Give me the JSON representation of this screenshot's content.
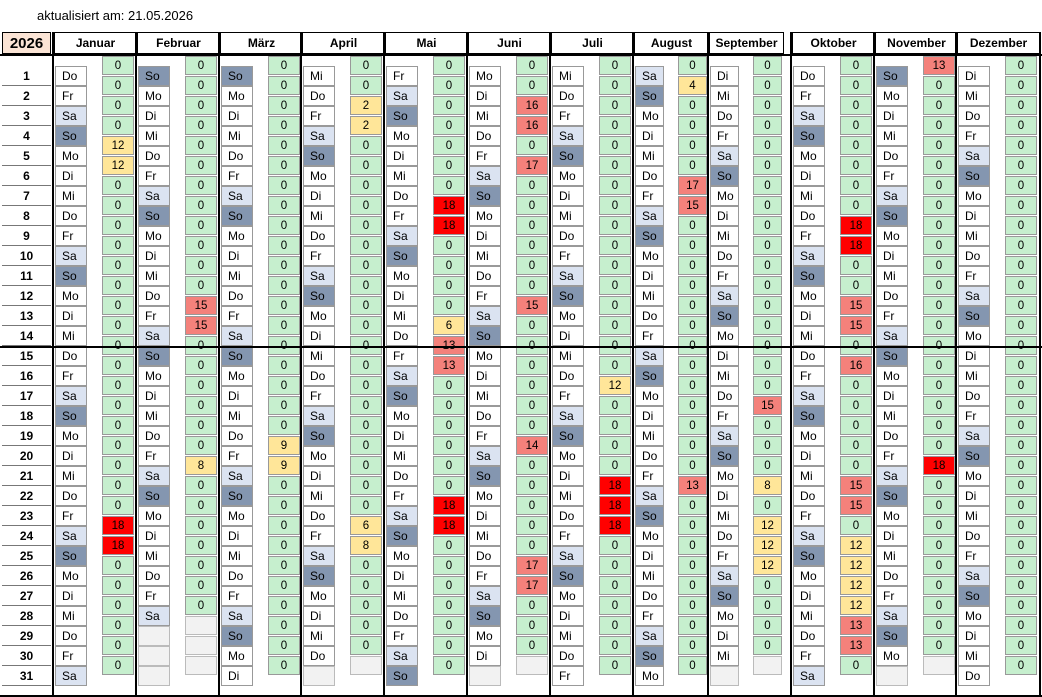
{
  "updated_label": "aktualisiert am:",
  "updated_date": "21.05.2026",
  "year": "2026",
  "months": [
    {
      "name": "Januar",
      "days": [
        "Do",
        "Fr",
        "Sa",
        "So",
        "Mo",
        "Di",
        "Mi",
        "Do",
        "Fr",
        "Sa",
        "So",
        "Mo",
        "Di",
        "Mi",
        "Do",
        "Fr",
        "Sa",
        "So",
        "Mo",
        "Di",
        "Mi",
        "Do",
        "Fr",
        "Sa",
        "So",
        "Mo",
        "Di",
        "Mi",
        "Do",
        "Fr",
        "Sa"
      ],
      "values": [
        0,
        0,
        0,
        0,
        12,
        12,
        0,
        0,
        0,
        0,
        0,
        0,
        0,
        0,
        0,
        0,
        0,
        0,
        0,
        0,
        0,
        0,
        0,
        18,
        18,
        0,
        0,
        0,
        0,
        0,
        0
      ]
    },
    {
      "name": "Februar",
      "days": [
        "So",
        "Mo",
        "Di",
        "Mi",
        "Do",
        "Fr",
        "Sa",
        "So",
        "Mo",
        "Di",
        "Mi",
        "Do",
        "Fr",
        "Sa",
        "So",
        "Mo",
        "Di",
        "Mi",
        "Do",
        "Fr",
        "Sa",
        "So",
        "Mo",
        "Di",
        "Mi",
        "Do",
        "Fr",
        "Sa"
      ],
      "values": [
        0,
        0,
        0,
        0,
        0,
        0,
        0,
        0,
        0,
        0,
        0,
        0,
        15,
        15,
        0,
        0,
        0,
        0,
        0,
        0,
        8,
        0,
        0,
        0,
        0,
        0,
        0,
        0
      ]
    },
    {
      "name": "März",
      "days": [
        "So",
        "Mo",
        "Di",
        "Mi",
        "Do",
        "Fr",
        "Sa",
        "So",
        "Mo",
        "Di",
        "Mi",
        "Do",
        "Fr",
        "Sa",
        "So",
        "Mo",
        "Di",
        "Mi",
        "Do",
        "Fr",
        "Sa",
        "So",
        "Mo",
        "Di",
        "Mi",
        "Do",
        "Fr",
        "Sa",
        "So",
        "Mo",
        "Di"
      ],
      "values": [
        0,
        0,
        0,
        0,
        0,
        0,
        0,
        0,
        0,
        0,
        0,
        0,
        0,
        0,
        0,
        0,
        0,
        0,
        0,
        9,
        9,
        0,
        0,
        0,
        0,
        0,
        0,
        0,
        0,
        0,
        0
      ]
    },
    {
      "name": "April",
      "days": [
        "Mi",
        "Do",
        "Fr",
        "Sa",
        "So",
        "Mo",
        "Di",
        "Mi",
        "Do",
        "Fr",
        "Sa",
        "So",
        "Mo",
        "Di",
        "Mi",
        "Do",
        "Fr",
        "Sa",
        "So",
        "Mo",
        "Di",
        "Mi",
        "Do",
        "Fr",
        "Sa",
        "So",
        "Mo",
        "Di",
        "Mi",
        "Do"
      ],
      "values": [
        0,
        0,
        2,
        2,
        0,
        0,
        0,
        0,
        0,
        0,
        0,
        0,
        0,
        0,
        0,
        0,
        0,
        0,
        0,
        0,
        0,
        0,
        0,
        6,
        8,
        0,
        0,
        0,
        0,
        0
      ]
    },
    {
      "name": "Mai",
      "days": [
        "Fr",
        "Sa",
        "So",
        "Mo",
        "Di",
        "Mi",
        "Do",
        "Fr",
        "Sa",
        "So",
        "Mo",
        "Di",
        "Mi",
        "Do",
        "Fr",
        "Sa",
        "So",
        "Mo",
        "Di",
        "Mi",
        "Do",
        "Fr",
        "Sa",
        "So",
        "Mo",
        "Di",
        "Mi",
        "Do",
        "Fr",
        "Sa",
        "So"
      ],
      "values": [
        0,
        0,
        0,
        0,
        0,
        0,
        0,
        18,
        18,
        0,
        0,
        0,
        0,
        6,
        13,
        13,
        0,
        0,
        0,
        0,
        0,
        0,
        18,
        18,
        0,
        0,
        0,
        0,
        0,
        0,
        0
      ]
    },
    {
      "name": "Juni",
      "days": [
        "Mo",
        "Di",
        "Mi",
        "Do",
        "Fr",
        "Sa",
        "So",
        "Mo",
        "Di",
        "Mi",
        "Do",
        "Fr",
        "Sa",
        "So",
        "Mo",
        "Di",
        "Mi",
        "Do",
        "Fr",
        "Sa",
        "So",
        "Mo",
        "Di",
        "Mi",
        "Do",
        "Fr",
        "Sa",
        "So",
        "Mo",
        "Di"
      ],
      "values": [
        0,
        0,
        16,
        16,
        0,
        17,
        0,
        0,
        0,
        0,
        0,
        0,
        15,
        0,
        0,
        0,
        0,
        0,
        0,
        14,
        0,
        0,
        0,
        0,
        0,
        17,
        17,
        0,
        0,
        0
      ]
    },
    {
      "name": "Juli",
      "days": [
        "Mi",
        "Do",
        "Fr",
        "Sa",
        "So",
        "Mo",
        "Di",
        "Mi",
        "Do",
        "Fr",
        "Sa",
        "So",
        "Mo",
        "Di",
        "Mi",
        "Do",
        "Fr",
        "Sa",
        "So",
        "Mo",
        "Di",
        "Mi",
        "Do",
        "Fr",
        "Sa",
        "So",
        "Mo",
        "Di",
        "Mi",
        "Do",
        "Fr"
      ],
      "values": [
        0,
        0,
        0,
        0,
        0,
        0,
        0,
        0,
        0,
        0,
        0,
        0,
        0,
        0,
        0,
        0,
        12,
        0,
        0,
        0,
        0,
        18,
        18,
        18,
        0,
        0,
        0,
        0,
        0,
        0,
        0
      ]
    },
    {
      "name": "August",
      "days": [
        "Sa",
        "So",
        "Mo",
        "Di",
        "Mi",
        "Do",
        "Fr",
        "Sa",
        "So",
        "Mo",
        "Di",
        "Mi",
        "Do",
        "Fr",
        "Sa",
        "So",
        "Mo",
        "Di",
        "Mi",
        "Do",
        "Fr",
        "Sa",
        "So",
        "Mo",
        "Di",
        "Mi",
        "Do",
        "Fr",
        "Sa",
        "So",
        "Mo"
      ],
      "values": [
        0,
        4,
        0,
        0,
        0,
        0,
        17,
        15,
        0,
        0,
        0,
        0,
        0,
        0,
        0,
        0,
        0,
        0,
        0,
        0,
        0,
        13,
        0,
        0,
        0,
        0,
        0,
        0,
        0,
        0,
        0
      ]
    },
    {
      "name": "September",
      "days": [
        "Di",
        "Mi",
        "Do",
        "Fr",
        "Sa",
        "So",
        "Mo",
        "Di",
        "Mi",
        "Do",
        "Fr",
        "Sa",
        "So",
        "Mo",
        "Di",
        "Mi",
        "Do",
        "Fr",
        "Sa",
        "So",
        "Mo",
        "Di",
        "Mi",
        "Do",
        "Fr",
        "Sa",
        "So",
        "Mo",
        "Di",
        "Mi"
      ],
      "values": [
        0,
        0,
        0,
        0,
        0,
        0,
        0,
        0,
        0,
        0,
        0,
        0,
        0,
        0,
        0,
        0,
        0,
        15,
        0,
        0,
        0,
        8,
        0,
        12,
        12,
        12,
        0,
        0,
        0,
        0
      ]
    },
    {
      "name": "Oktober",
      "days": [
        "Do",
        "Fr",
        "Sa",
        "So",
        "Mo",
        "Di",
        "Mi",
        "Do",
        "Fr",
        "Sa",
        "So",
        "Mo",
        "Di",
        "Mi",
        "Do",
        "Fr",
        "Sa",
        "So",
        "Mo",
        "Di",
        "Mi",
        "Do",
        "Fr",
        "Sa",
        "So",
        "Mo",
        "Di",
        "Mi",
        "Do",
        "Fr",
        "Sa"
      ],
      "values": [
        0,
        0,
        0,
        0,
        0,
        0,
        0,
        0,
        18,
        18,
        0,
        0,
        15,
        15,
        0,
        16,
        0,
        0,
        0,
        0,
        0,
        15,
        15,
        0,
        12,
        12,
        12,
        12,
        13,
        13,
        0
      ]
    },
    {
      "name": "November",
      "days": [
        "So",
        "Mo",
        "Di",
        "Mi",
        "Do",
        "Fr",
        "Sa",
        "So",
        "Mo",
        "Di",
        "Mi",
        "Do",
        "Fr",
        "Sa",
        "So",
        "Mo",
        "Di",
        "Mi",
        "Do",
        "Fr",
        "Sa",
        "So",
        "Mo",
        "Di",
        "Mi",
        "Do",
        "Fr",
        "Sa",
        "So",
        "Mo"
      ],
      "values": [
        13,
        0,
        0,
        0,
        0,
        0,
        0,
        0,
        0,
        0,
        0,
        0,
        0,
        0,
        0,
        0,
        0,
        0,
        0,
        0,
        18,
        0,
        0,
        0,
        0,
        0,
        0,
        0,
        0,
        0
      ]
    },
    {
      "name": "Dezember",
      "days": [
        "Di",
        "Mi",
        "Do",
        "Fr",
        "Sa",
        "So",
        "Mo",
        "Di",
        "Mi",
        "Do",
        "Fr",
        "Sa",
        "So",
        "Mo",
        "Di",
        "Mi",
        "Do",
        "Fr",
        "Sa",
        "So",
        "Mo",
        "Di",
        "Mi",
        "Do",
        "Fr",
        "Sa",
        "So",
        "Mo",
        "Di",
        "Mi",
        "Do"
      ],
      "values": [
        0,
        0,
        0,
        0,
        0,
        0,
        0,
        0,
        0,
        0,
        0,
        0,
        0,
        0,
        0,
        0,
        0,
        0,
        0,
        0,
        0,
        0,
        0,
        0,
        0,
        0,
        0,
        0,
        0,
        0,
        0
      ]
    }
  ],
  "colors": {
    "zero": "#c6efce",
    "low": "#ffe699",
    "high": "#f4817b",
    "max": "#ff0000",
    "saturday": "#dbe3f1",
    "sunday": "#8496b0"
  }
}
